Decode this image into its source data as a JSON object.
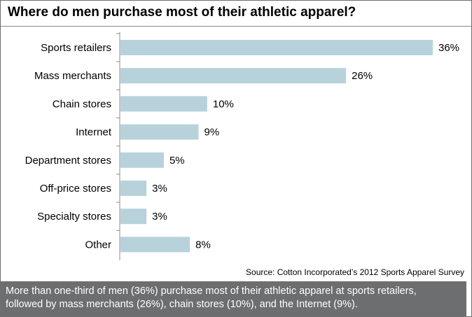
{
  "title": "Where do men purchase most of their athletic apparel?",
  "source": "Source: Cotton Incorporated’s  2012 Sports Apparel Survey",
  "caption_lines": [
    "More than one-third of men (36%) purchase most of their athletic apparel at sports retailers,",
    "followed by mass merchants (26%), chain stores (10%), and the Internet  (9%)."
  ],
  "colors": {
    "bar": "#b7d2da",
    "caption_bg": "#6d6e70"
  },
  "chart_data": {
    "type": "bar",
    "orientation": "horizontal",
    "categories": [
      "Sports retailers",
      "Mass merchants",
      "Chain stores",
      "Internet",
      "Department stores",
      "Off-price stores",
      "Specialty stores",
      "Other"
    ],
    "values": [
      36,
      26,
      10,
      9,
      5,
      3,
      3,
      8
    ],
    "data_labels": [
      "36%",
      "26%",
      "10%",
      "9%",
      "5%",
      "3%",
      "3%",
      "8%"
    ],
    "unit": "%",
    "xlim": [
      0,
      36
    ],
    "grid": false,
    "legend": "none"
  }
}
